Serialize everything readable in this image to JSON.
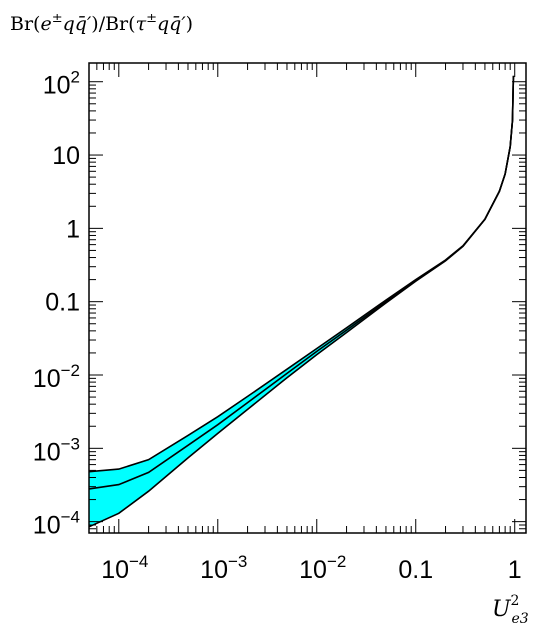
{
  "chart_data": {
    "type": "line",
    "ylabel": {
      "base": "Br(",
      "e": "e",
      "pm1": "±",
      "q1": "q",
      "qbar1": "q̄′",
      "mid": ")/Br(",
      "tau": "τ",
      "pm2": "±",
      "q2": "q",
      "qbar2": "q̄′",
      "end": ")"
    },
    "xlabel": {
      "base": "U",
      "sup": "2",
      "sub": "e3"
    },
    "x_scale": "log",
    "y_scale": "log",
    "xlim": [
      5e-05,
      1.3
    ],
    "ylim": [
      7e-05,
      180
    ],
    "grid": false,
    "band_color": "#00ffff",
    "line_color": "#000000",
    "x_ticks": [
      {
        "value": 0.0001,
        "base": "10",
        "exp": "−4"
      },
      {
        "value": 0.001,
        "base": "10",
        "exp": "−3"
      },
      {
        "value": 0.01,
        "base": "10",
        "exp": "−2"
      },
      {
        "value": 0.1,
        "base": "0.1",
        "exp": ""
      },
      {
        "value": 1,
        "base": "1",
        "exp": ""
      }
    ],
    "y_ticks": [
      {
        "value": 100,
        "base": "10",
        "exp": "2"
      },
      {
        "value": 10,
        "base": "10",
        "exp": ""
      },
      {
        "value": 1,
        "base": "1",
        "exp": ""
      },
      {
        "value": 0.1,
        "base": "0.1",
        "exp": ""
      },
      {
        "value": 0.01,
        "base": "10",
        "exp": "−2"
      },
      {
        "value": 0.001,
        "base": "10",
        "exp": "−3"
      },
      {
        "value": 0.0001,
        "base": "10",
        "exp": "−4"
      }
    ],
    "series": [
      {
        "role": "upper",
        "x": [
          5e-05,
          0.0001,
          0.0002,
          0.0005,
          0.001,
          0.002,
          0.005,
          0.01,
          0.02,
          0.05,
          0.1,
          0.2,
          0.3,
          0.5,
          0.7,
          0.8,
          0.9,
          0.95,
          0.97
        ],
        "y": [
          0.00048,
          0.00052,
          0.0007,
          0.0015,
          0.0027,
          0.0051,
          0.012,
          0.023,
          0.044,
          0.105,
          0.2,
          0.37,
          0.58,
          1.33,
          3.2,
          5.5,
          13,
          30,
          120
        ]
      },
      {
        "role": "central",
        "x": [
          5e-05,
          0.0001,
          0.0002,
          0.0005,
          0.001,
          0.002,
          0.005,
          0.01,
          0.02,
          0.05,
          0.1,
          0.2,
          0.3,
          0.5,
          0.7,
          0.8,
          0.9,
          0.95,
          0.97
        ],
        "y": [
          0.00028,
          0.00032,
          0.00047,
          0.0011,
          0.0021,
          0.0042,
          0.0105,
          0.021,
          0.041,
          0.1,
          0.195,
          0.365,
          0.575,
          1.33,
          3.2,
          5.5,
          13,
          30,
          120
        ]
      },
      {
        "role": "lower",
        "x": [
          5e-05,
          0.0001,
          0.0002,
          0.0005,
          0.001,
          0.002,
          0.005,
          0.01,
          0.02,
          0.05,
          0.1,
          0.2,
          0.3,
          0.5,
          0.7,
          0.8,
          0.9,
          0.95,
          0.97
        ],
        "y": [
          8.5e-05,
          0.00013,
          0.00026,
          0.00074,
          0.0016,
          0.0034,
          0.0092,
          0.019,
          0.038,
          0.096,
          0.19,
          0.36,
          0.57,
          1.33,
          3.2,
          5.5,
          13,
          30,
          120
        ]
      }
    ]
  }
}
